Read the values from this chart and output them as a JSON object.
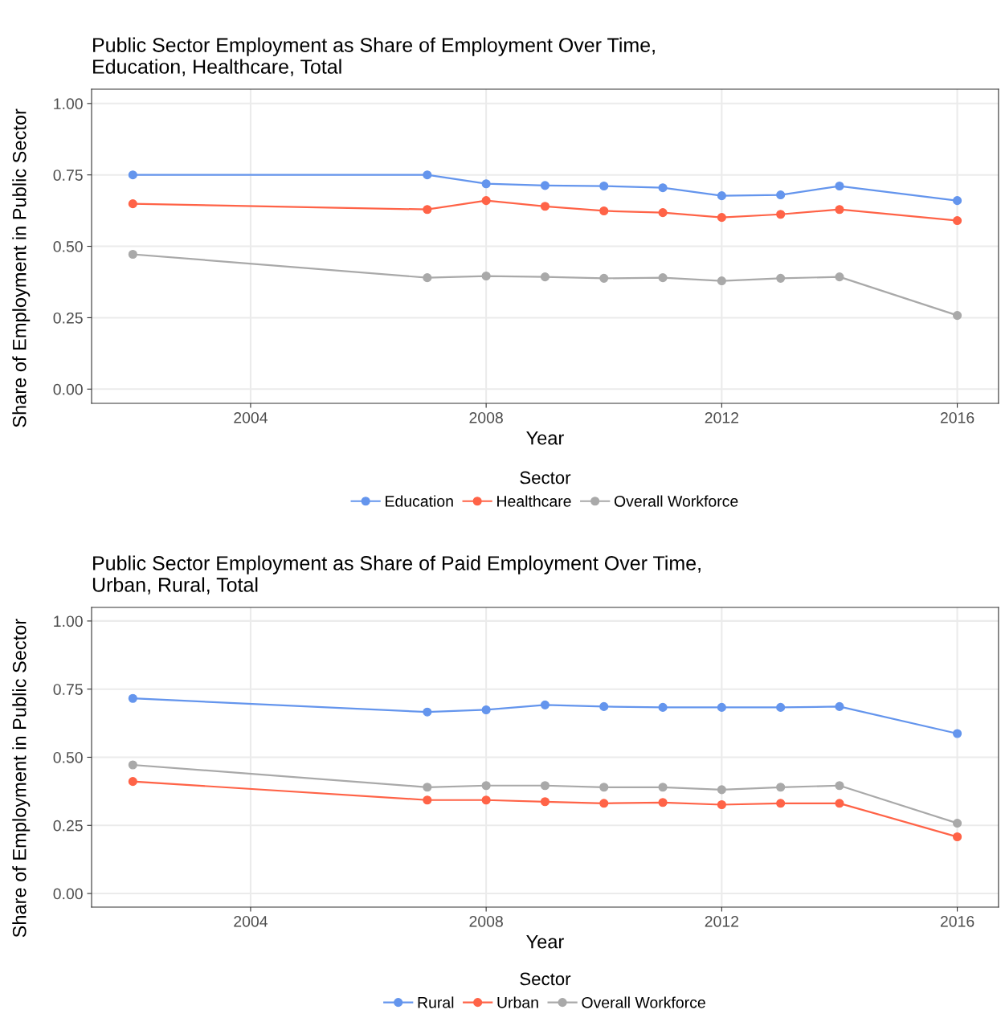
{
  "chart_data": [
    {
      "type": "line",
      "title": "Public Sector Employment as Share of Employment Over Time,\nEducation, Healthcare, Total",
      "xlabel": "Year",
      "ylabel": "Share of Employment in Public Sector",
      "legend_title": "Sector",
      "x": [
        2002,
        2007,
        2008,
        2009,
        2010,
        2011,
        2012,
        2013,
        2014,
        2016
      ],
      "series": [
        {
          "name": "Education",
          "color": "#6495ed",
          "values": [
            0.75,
            0.75,
            0.719,
            0.713,
            0.711,
            0.705,
            0.677,
            0.68,
            0.711,
            0.66
          ]
        },
        {
          "name": "Healthcare",
          "color": "#ff6347",
          "values": [
            0.649,
            0.629,
            0.66,
            0.64,
            0.624,
            0.618,
            0.601,
            0.612,
            0.629,
            0.59
          ]
        },
        {
          "name": "Overall Workforce",
          "color": "#a9a9a9",
          "values": [
            0.472,
            0.39,
            0.396,
            0.393,
            0.388,
            0.39,
            0.379,
            0.388,
            0.393,
            0.258
          ]
        }
      ],
      "xlim": [
        2001.3,
        2016.7
      ],
      "xticks": [
        2004,
        2008,
        2012,
        2016
      ],
      "ylim": [
        -0.05,
        1.05
      ],
      "yticks": [
        {
          "value": 0,
          "label": "0.00"
        },
        {
          "value": 0.25,
          "label": "0.25"
        },
        {
          "value": 0.5,
          "label": "0.50"
        },
        {
          "value": 0.75,
          "label": "0.75"
        },
        {
          "value": 1,
          "label": "1.00"
        }
      ],
      "grid": true,
      "legend": "bottom",
      "marker": "circle",
      "line_style": "solid"
    },
    {
      "type": "line",
      "title": "Public Sector Employment as Share of Paid Employment Over Time,\nUrban, Rural, Total",
      "xlabel": "Year",
      "ylabel": "Share of Employment in Public Sector",
      "legend_title": "Sector",
      "x": [
        2002,
        2007,
        2008,
        2009,
        2010,
        2011,
        2012,
        2013,
        2014,
        2016
      ],
      "series": [
        {
          "name": "Rural",
          "color": "#6495ed",
          "values": [
            0.716,
            0.666,
            0.674,
            0.692,
            0.686,
            0.683,
            0.683,
            0.683,
            0.686,
            0.587
          ]
        },
        {
          "name": "Urban",
          "color": "#ff6347",
          "values": [
            0.411,
            0.343,
            0.343,
            0.337,
            0.331,
            0.334,
            0.326,
            0.331,
            0.331,
            0.208
          ]
        },
        {
          "name": "Overall Workforce",
          "color": "#a9a9a9",
          "values": [
            0.472,
            0.39,
            0.396,
            0.396,
            0.39,
            0.39,
            0.381,
            0.39,
            0.396,
            0.258
          ]
        }
      ],
      "xlim": [
        2001.3,
        2016.7
      ],
      "xticks": [
        2004,
        2008,
        2012,
        2016
      ],
      "ylim": [
        -0.05,
        1.05
      ],
      "yticks": [
        {
          "value": 0,
          "label": "0.00"
        },
        {
          "value": 0.25,
          "label": "0.25"
        },
        {
          "value": 0.5,
          "label": "0.50"
        },
        {
          "value": 0.75,
          "label": "0.75"
        },
        {
          "value": 1,
          "label": "1.00"
        }
      ],
      "grid": true,
      "legend": "bottom",
      "marker": "circle",
      "line_style": "solid"
    }
  ]
}
